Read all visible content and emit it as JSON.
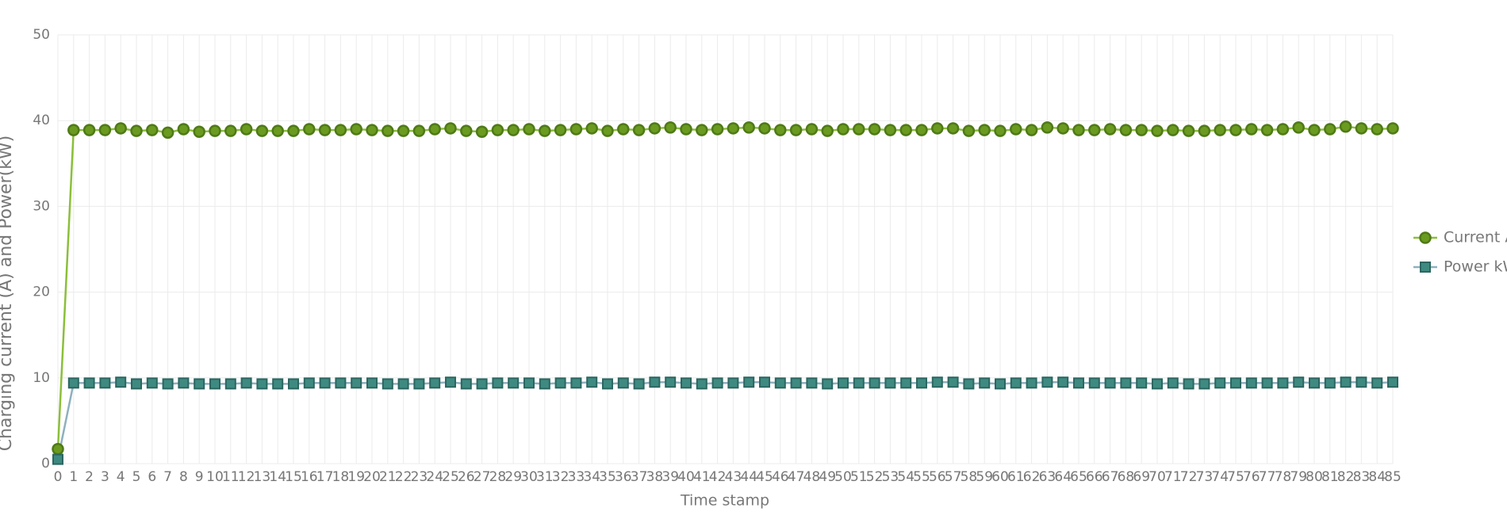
{
  "chart_data": {
    "type": "line",
    "x_label": "Time stamp",
    "y_label": "Charging current (A) and Power(kW)",
    "categories": [
      "0",
      "1",
      "2",
      "3",
      "4",
      "5",
      "6",
      "7",
      "8",
      "9",
      "10",
      "11",
      "12",
      "13",
      "14",
      "15",
      "16",
      "17",
      "18",
      "19",
      "20",
      "21",
      "22",
      "23",
      "24",
      "25",
      "26",
      "27",
      "28",
      "29",
      "30",
      "31",
      "32",
      "33",
      "34",
      "35",
      "36",
      "37",
      "38",
      "39",
      "40",
      "41",
      "42",
      "43",
      "44",
      "45",
      "46",
      "47",
      "48",
      "49",
      "50",
      "51",
      "52",
      "53",
      "54",
      "55",
      "56",
      "57",
      "58",
      "59",
      "60",
      "61",
      "62",
      "63",
      "64",
      "65",
      "66",
      "67",
      "68",
      "69",
      "70",
      "71",
      "72",
      "73",
      "74",
      "75",
      "76",
      "77",
      "78",
      "79",
      "80",
      "81",
      "82",
      "83",
      "84",
      "85"
    ],
    "series": [
      {
        "name": "Current A",
        "color": "#6a9a1f",
        "marker": "circle",
        "values": [
          1.7,
          38.9,
          38.9,
          38.9,
          39.1,
          38.8,
          38.9,
          38.6,
          39.0,
          38.7,
          38.8,
          38.8,
          39.0,
          38.8,
          38.8,
          38.8,
          39.0,
          38.9,
          38.9,
          39.0,
          38.9,
          38.8,
          38.8,
          38.8,
          39.0,
          39.1,
          38.8,
          38.7,
          38.9,
          38.9,
          39.0,
          38.8,
          38.9,
          39.0,
          39.1,
          38.8,
          39.0,
          38.9,
          39.1,
          39.2,
          39.0,
          38.9,
          39.0,
          39.1,
          39.2,
          39.1,
          38.9,
          38.9,
          39.0,
          38.8,
          39.0,
          39.0,
          39.0,
          38.9,
          38.9,
          38.9,
          39.1,
          39.1,
          38.8,
          38.9,
          38.8,
          39.0,
          38.9,
          39.2,
          39.1,
          38.9,
          38.9,
          39.0,
          38.9,
          38.9,
          38.8,
          38.9,
          38.8,
          38.8,
          38.9,
          38.9,
          39.0,
          38.9,
          39.0,
          39.2,
          38.9,
          39.0,
          39.3,
          39.1,
          39.0,
          39.1
        ]
      },
      {
        "name": "Power kW",
        "color": "#3e8a80",
        "marker": "square",
        "values": [
          0.5,
          9.4,
          9.4,
          9.4,
          9.5,
          9.3,
          9.4,
          9.3,
          9.4,
          9.3,
          9.3,
          9.3,
          9.4,
          9.3,
          9.3,
          9.3,
          9.4,
          9.4,
          9.4,
          9.4,
          9.4,
          9.3,
          9.3,
          9.3,
          9.4,
          9.5,
          9.3,
          9.3,
          9.4,
          9.4,
          9.4,
          9.3,
          9.4,
          9.4,
          9.5,
          9.3,
          9.4,
          9.3,
          9.5,
          9.5,
          9.4,
          9.3,
          9.4,
          9.4,
          9.5,
          9.5,
          9.4,
          9.4,
          9.4,
          9.3,
          9.4,
          9.4,
          9.4,
          9.4,
          9.4,
          9.4,
          9.5,
          9.5,
          9.3,
          9.4,
          9.3,
          9.4,
          9.4,
          9.5,
          9.5,
          9.4,
          9.4,
          9.4,
          9.4,
          9.4,
          9.3,
          9.4,
          9.3,
          9.3,
          9.4,
          9.4,
          9.4,
          9.4,
          9.4,
          9.5,
          9.4,
          9.4,
          9.5,
          9.5,
          9.4,
          9.5
        ]
      }
    ],
    "ylim": [
      0,
      50
    ],
    "yticks": [
      0,
      10,
      20,
      30,
      40,
      50
    ],
    "grid": true,
    "legend": "right"
  }
}
